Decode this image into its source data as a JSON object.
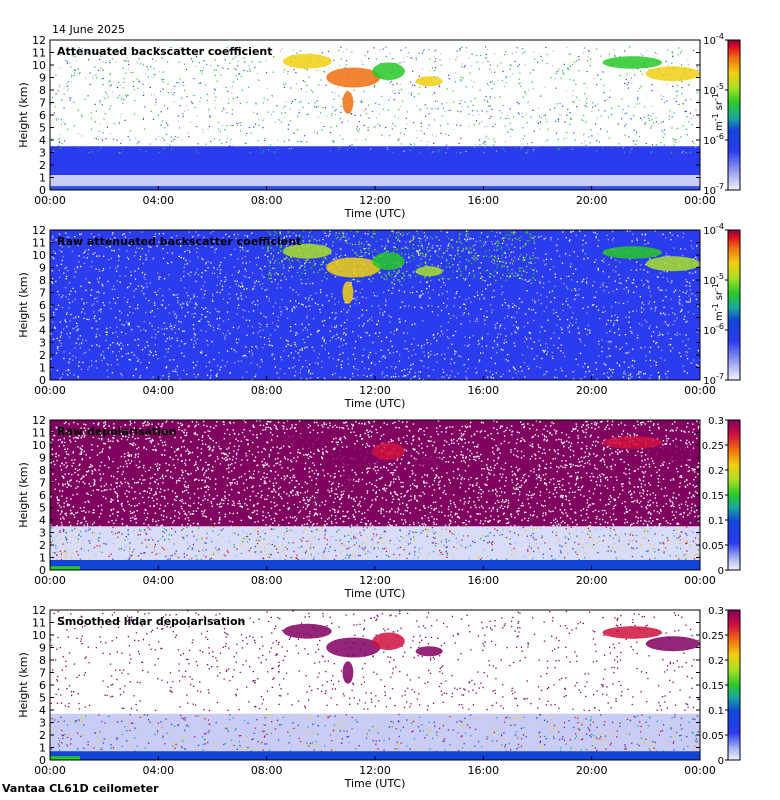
{
  "header": {
    "date": "14 June 2025"
  },
  "footer": {
    "instrument": "Vantaa CL61D ceilometer"
  },
  "chart_data": [
    {
      "type": "heatmap",
      "title": "Attenuated backscatter coefficient",
      "xlabel": "Time (UTC)",
      "ylabel": "Height (km)",
      "xticks": [
        "00:00",
        "04:00",
        "08:00",
        "12:00",
        "16:00",
        "20:00",
        "00:00"
      ],
      "xlim_hours": [
        0,
        24
      ],
      "ylim": [
        0,
        12
      ],
      "yticks": [
        "0",
        "1",
        "2",
        "3",
        "4",
        "5",
        "6",
        "7",
        "8",
        "9",
        "10",
        "11",
        "12"
      ],
      "colorbar": {
        "scale": "log",
        "range": [
          1e-07,
          0.0001
        ],
        "ticks": [
          {
            "base": "10",
            "exp": "-7"
          },
          {
            "base": "10",
            "exp": "-6"
          },
          {
            "base": "10",
            "exp": "-5"
          },
          {
            "base": "10",
            "exp": "-4"
          }
        ],
        "unit": {
          "m": "m",
          "m_exp": "-1",
          "sr": "sr",
          "sr_exp": "-1"
        }
      },
      "features": [
        {
          "name": "boundary layer",
          "height_km": [
            0.3,
            3.5
          ],
          "time_h": [
            0,
            24
          ]
        },
        {
          "name": "cirrus",
          "height_km": [
            8,
            11
          ],
          "time_h": [
            9,
            24
          ]
        }
      ]
    },
    {
      "type": "heatmap",
      "title": "Raw attenuated backscatter coefficient",
      "xlabel": "Time (UTC)",
      "ylabel": "Height (km)",
      "xticks": [
        "00:00",
        "04:00",
        "08:00",
        "12:00",
        "16:00",
        "20:00",
        "00:00"
      ],
      "xlim_hours": [
        0,
        24
      ],
      "ylim": [
        0,
        12
      ],
      "yticks": [
        "0",
        "1",
        "2",
        "3",
        "4",
        "5",
        "6",
        "7",
        "8",
        "9",
        "10",
        "11",
        "12"
      ],
      "colorbar": {
        "scale": "log",
        "range": [
          1e-07,
          0.0001
        ],
        "ticks": [
          {
            "base": "10",
            "exp": "-7"
          },
          {
            "base": "10",
            "exp": "-6"
          },
          {
            "base": "10",
            "exp": "-5"
          },
          {
            "base": "10",
            "exp": "-4"
          }
        ],
        "unit": {
          "m": "m",
          "m_exp": "-1",
          "sr": "sr",
          "sr_exp": "-1"
        }
      }
    },
    {
      "type": "heatmap",
      "title": "Raw depolarisation",
      "xlabel": "Time (UTC)",
      "ylabel": "Height (km)",
      "xticks": [
        "00:00",
        "04:00",
        "08:00",
        "12:00",
        "16:00",
        "20:00",
        "00:00"
      ],
      "xlim_hours": [
        0,
        24
      ],
      "ylim": [
        0,
        12
      ],
      "yticks": [
        "0",
        "1",
        "2",
        "3",
        "4",
        "5",
        "6",
        "7",
        "8",
        "9",
        "10",
        "11",
        "12"
      ],
      "colorbar": {
        "scale": "linear",
        "range": [
          0,
          0.3
        ],
        "ticks": [
          "0",
          "0.05",
          "0.1",
          "0.15",
          "0.2",
          "0.25",
          "0.3"
        ]
      }
    },
    {
      "type": "heatmap",
      "title": "Smoothed lidar depolarisation",
      "xlabel": "Time (UTC)",
      "ylabel": "Height (km)",
      "xticks": [
        "00:00",
        "04:00",
        "08:00",
        "12:00",
        "16:00",
        "20:00",
        "00:00"
      ],
      "xlim_hours": [
        0,
        24
      ],
      "ylim": [
        0,
        12
      ],
      "yticks": [
        "0",
        "1",
        "2",
        "3",
        "4",
        "5",
        "6",
        "7",
        "8",
        "9",
        "10",
        "11",
        "12"
      ],
      "colorbar": {
        "scale": "linear",
        "range": [
          0,
          0.3
        ],
        "ticks": [
          "0",
          "0.05",
          "0.1",
          "0.15",
          "0.2",
          "0.25",
          "0.3"
        ]
      }
    }
  ]
}
